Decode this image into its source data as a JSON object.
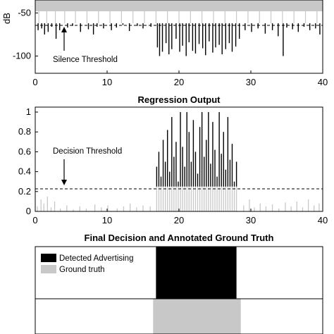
{
  "chart_data": [
    {
      "type": "bar",
      "title": "",
      "xlabel": "",
      "ylabel": "dB",
      "xlim": [
        0,
        40
      ],
      "ylim": [
        -120,
        -35
      ],
      "xticks": [
        0,
        10,
        20,
        30,
        40
      ],
      "yticks": [
        -50,
        -100
      ],
      "threshold": -62,
      "annotation": "Silence Threshold",
      "series": [
        {
          "values_above_max": [
            [
              0.5,
              -35
            ],
            [
              1.6,
              -38
            ],
            [
              2.8,
              -36
            ],
            [
              4.1,
              -39
            ],
            [
              5.6,
              -37
            ],
            [
              7.2,
              -38
            ],
            [
              8.8,
              -36
            ],
            [
              10.4,
              -39
            ],
            [
              12.0,
              -37
            ],
            [
              13.6,
              -38
            ],
            [
              15.2,
              -37
            ],
            [
              16.8,
              -38
            ],
            [
              18.4,
              -37
            ],
            [
              20.0,
              -38
            ],
            [
              21.6,
              -36
            ],
            [
              23.2,
              -39
            ],
            [
              24.8,
              -37
            ],
            [
              26.4,
              -38
            ],
            [
              28.0,
              -36
            ],
            [
              29.6,
              -39
            ],
            [
              31.2,
              -37
            ],
            [
              32.8,
              -38
            ],
            [
              34.4,
              -37
            ],
            [
              36.0,
              -38
            ],
            [
              37.6,
              -36
            ],
            [
              39.2,
              -38
            ]
          ],
          "values_below": [
            [
              0.4,
              -70
            ],
            [
              0.9,
              -68
            ],
            [
              1.3,
              -75
            ],
            [
              1.8,
              -72
            ],
            [
              2.3,
              -66
            ],
            [
              2.9,
              -80
            ],
            [
              3.4,
              -70
            ],
            [
              4.5,
              -67
            ],
            [
              5.2,
              -65
            ],
            [
              6.3,
              -72
            ],
            [
              7.4,
              -69
            ],
            [
              8.1,
              -75
            ],
            [
              8.6,
              -66
            ],
            [
              9.5,
              -68
            ],
            [
              10.6,
              -70
            ],
            [
              11.3,
              -67
            ],
            [
              12.2,
              -64
            ],
            [
              13.1,
              -71
            ],
            [
              14.2,
              -65
            ],
            [
              15.0,
              -68
            ],
            [
              16.1,
              -66
            ],
            [
              17.0,
              -90
            ],
            [
              17.3,
              -100
            ],
            [
              17.7,
              -95
            ],
            [
              18.2,
              -85
            ],
            [
              18.6,
              -98
            ],
            [
              19.0,
              -92
            ],
            [
              19.6,
              -80
            ],
            [
              20.1,
              -95
            ],
            [
              20.5,
              -88
            ],
            [
              21.0,
              -100
            ],
            [
              21.4,
              -84
            ],
            [
              21.9,
              -94
            ],
            [
              22.3,
              -97
            ],
            [
              22.8,
              -86
            ],
            [
              23.3,
              -91
            ],
            [
              23.7,
              -99
            ],
            [
              24.2,
              -83
            ],
            [
              24.7,
              -96
            ],
            [
              25.1,
              -90
            ],
            [
              25.6,
              -87
            ],
            [
              26.0,
              -98
            ],
            [
              26.5,
              -92
            ],
            [
              27.0,
              -85
            ],
            [
              27.4,
              -95
            ],
            [
              27.9,
              -89
            ],
            [
              28.4,
              -80
            ],
            [
              29.2,
              -70
            ],
            [
              30.1,
              -72
            ],
            [
              31.0,
              -68
            ],
            [
              32.0,
              -74
            ],
            [
              33.0,
              -70
            ],
            [
              33.8,
              -77
            ],
            [
              34.5,
              -100
            ],
            [
              35.0,
              -67
            ],
            [
              35.8,
              -69
            ],
            [
              36.6,
              -72
            ],
            [
              37.4,
              -66
            ],
            [
              38.2,
              -70
            ],
            [
              39.0,
              -68
            ],
            [
              39.6,
              -75
            ]
          ]
        }
      ]
    },
    {
      "type": "bar",
      "title": "Regression Output",
      "xlabel": "",
      "ylabel": "",
      "xlim": [
        0,
        40
      ],
      "ylim": [
        0,
        1.05
      ],
      "xticks": [
        0,
        10,
        20,
        30,
        40
      ],
      "yticks": [
        0,
        0.2,
        0.4,
        0.6,
        0.8,
        1
      ],
      "ytick_labels": [
        "0",
        "0.2",
        "0.4",
        "0.6",
        "0.8",
        "1"
      ],
      "threshold": 0.25,
      "annotation": "Decision Threshold",
      "series": [
        {
          "name": "",
          "values": [
            [
              0.3,
              0.05
            ],
            [
              0.8,
              0.12
            ],
            [
              1.2,
              0.08
            ],
            [
              1.7,
              0.15
            ],
            [
              2.2,
              0.04
            ],
            [
              2.7,
              0.1
            ],
            [
              3.5,
              0.03
            ],
            [
              4.4,
              0.06
            ],
            [
              5.3,
              0.02
            ],
            [
              6.2,
              0.05
            ],
            [
              7.1,
              0.03
            ],
            [
              8.3,
              0.07
            ],
            [
              9.2,
              0.04
            ],
            [
              10.1,
              0.06
            ],
            [
              11.4,
              0.03
            ],
            [
              12.3,
              0.05
            ],
            [
              13.2,
              0.08
            ],
            [
              14.1,
              0.04
            ],
            [
              15.0,
              0.06
            ],
            [
              16.0,
              0.05
            ],
            [
              16.9,
              0.45
            ],
            [
              17.2,
              0.6
            ],
            [
              17.5,
              0.35
            ],
            [
              17.8,
              0.72
            ],
            [
              18.1,
              0.5
            ],
            [
              18.4,
              0.82
            ],
            [
              18.7,
              0.4
            ],
            [
              19.0,
              0.95
            ],
            [
              19.3,
              0.55
            ],
            [
              19.6,
              0.7
            ],
            [
              19.9,
              0.3
            ],
            [
              20.2,
              1.0
            ],
            [
              20.5,
              0.65
            ],
            [
              20.8,
              0.45
            ],
            [
              21.1,
              1.0
            ],
            [
              21.4,
              0.8
            ],
            [
              21.7,
              0.5
            ],
            [
              22.0,
              0.92
            ],
            [
              22.3,
              0.6
            ],
            [
              22.6,
              0.38
            ],
            [
              22.9,
              0.85
            ],
            [
              23.2,
              1.0
            ],
            [
              23.5,
              0.55
            ],
            [
              23.8,
              0.72
            ],
            [
              24.1,
              1.0
            ],
            [
              24.4,
              0.48
            ],
            [
              24.7,
              0.9
            ],
            [
              25.0,
              0.62
            ],
            [
              25.3,
              0.35
            ],
            [
              25.6,
              1.0
            ],
            [
              25.9,
              0.58
            ],
            [
              26.2,
              0.8
            ],
            [
              26.5,
              0.42
            ],
            [
              26.8,
              0.95
            ],
            [
              27.1,
              0.52
            ],
            [
              27.4,
              0.68
            ],
            [
              27.7,
              0.3
            ],
            [
              28.0,
              0.5
            ],
            [
              29.0,
              0.06
            ],
            [
              29.8,
              0.12
            ],
            [
              30.5,
              0.04
            ],
            [
              31.3,
              0.08
            ],
            [
              32.1,
              0.05
            ],
            [
              33.0,
              0.07
            ],
            [
              33.9,
              0.03
            ],
            [
              34.8,
              0.09
            ],
            [
              35.6,
              0.05
            ],
            [
              36.4,
              0.1
            ],
            [
              37.2,
              0.04
            ],
            [
              38.0,
              0.12
            ],
            [
              38.8,
              0.06
            ],
            [
              39.5,
              0.08
            ]
          ]
        }
      ]
    },
    {
      "type": "area",
      "title": "Final Decision and Annotated Ground Truth",
      "xlim": [
        0,
        40
      ],
      "legend": [
        "Detected Advertising",
        "Ground truth"
      ],
      "series": [
        {
          "name": "Detected Advertising",
          "x_range": [
            16.8,
            28.0
          ],
          "color": "#000000"
        },
        {
          "name": "Ground truth",
          "x_range": [
            16.4,
            28.6
          ],
          "color": "#c8c8c8"
        }
      ]
    }
  ],
  "colors": {
    "signal": "#c8c8c8",
    "marks": "#000000",
    "axis": "#000000"
  }
}
